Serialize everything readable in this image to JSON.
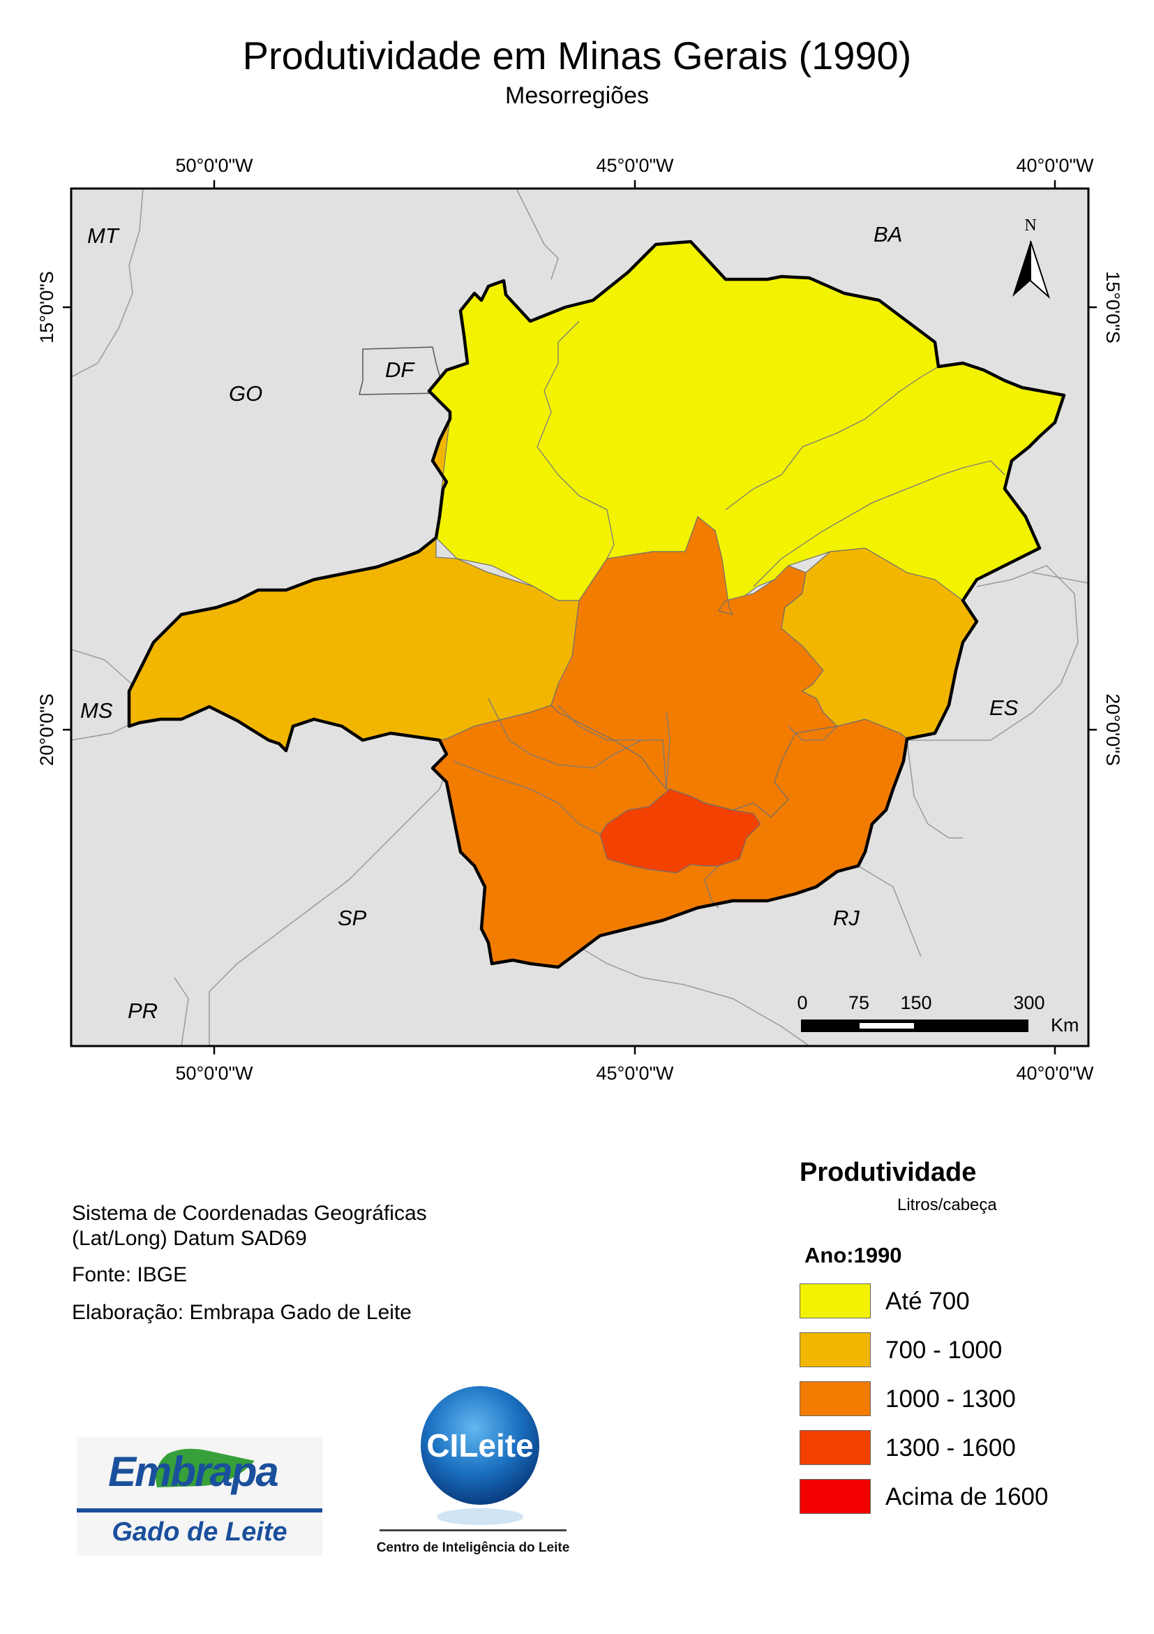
{
  "title": "Produtividade em Minas Gerais (1990)",
  "subtitle": "Mesorregiões",
  "graticule": {
    "longitudes": [
      "50°0'0\"W",
      "45°0'0\"W",
      "40°0'0\"W"
    ],
    "latitudes": [
      "15°0'0\"S",
      "20°0'0\"S"
    ]
  },
  "states": [
    "MT",
    "BA",
    "GO",
    "DF",
    "MS",
    "ES",
    "SP",
    "RJ",
    "PR"
  ],
  "north_arrow": {
    "label": "N"
  },
  "scale_bar": {
    "ticks": [
      "0",
      "75",
      "150",
      "300"
    ],
    "unit": "Km"
  },
  "info": {
    "coord_line1": "Sistema de Coordenadas Geográficas",
    "coord_line2": "(Lat/Long) Datum SAD69",
    "source": "Fonte: IBGE",
    "author": "Elaboração: Embrapa Gado de Leite"
  },
  "legend": {
    "title": "Produtividade",
    "unit": "Litros/cabeça",
    "year": "Ano:1990",
    "classes": [
      {
        "label": "Até 700",
        "color": "#f3f300"
      },
      {
        "label": "700 - 1000",
        "color": "#f2b600"
      },
      {
        "label": "1000 - 1300",
        "color": "#f27c00"
      },
      {
        "label": "1300 - 1600",
        "color": "#f24100"
      },
      {
        "label": "Acima de 1600",
        "color": "#f20000"
      }
    ]
  },
  "logos": {
    "embrapa_name": "Embrapa",
    "embrapa_sub": "Gado de Leite",
    "cileite_name": "CILeite",
    "cileite_sub": "Centro de Inteligência do Leite"
  }
}
